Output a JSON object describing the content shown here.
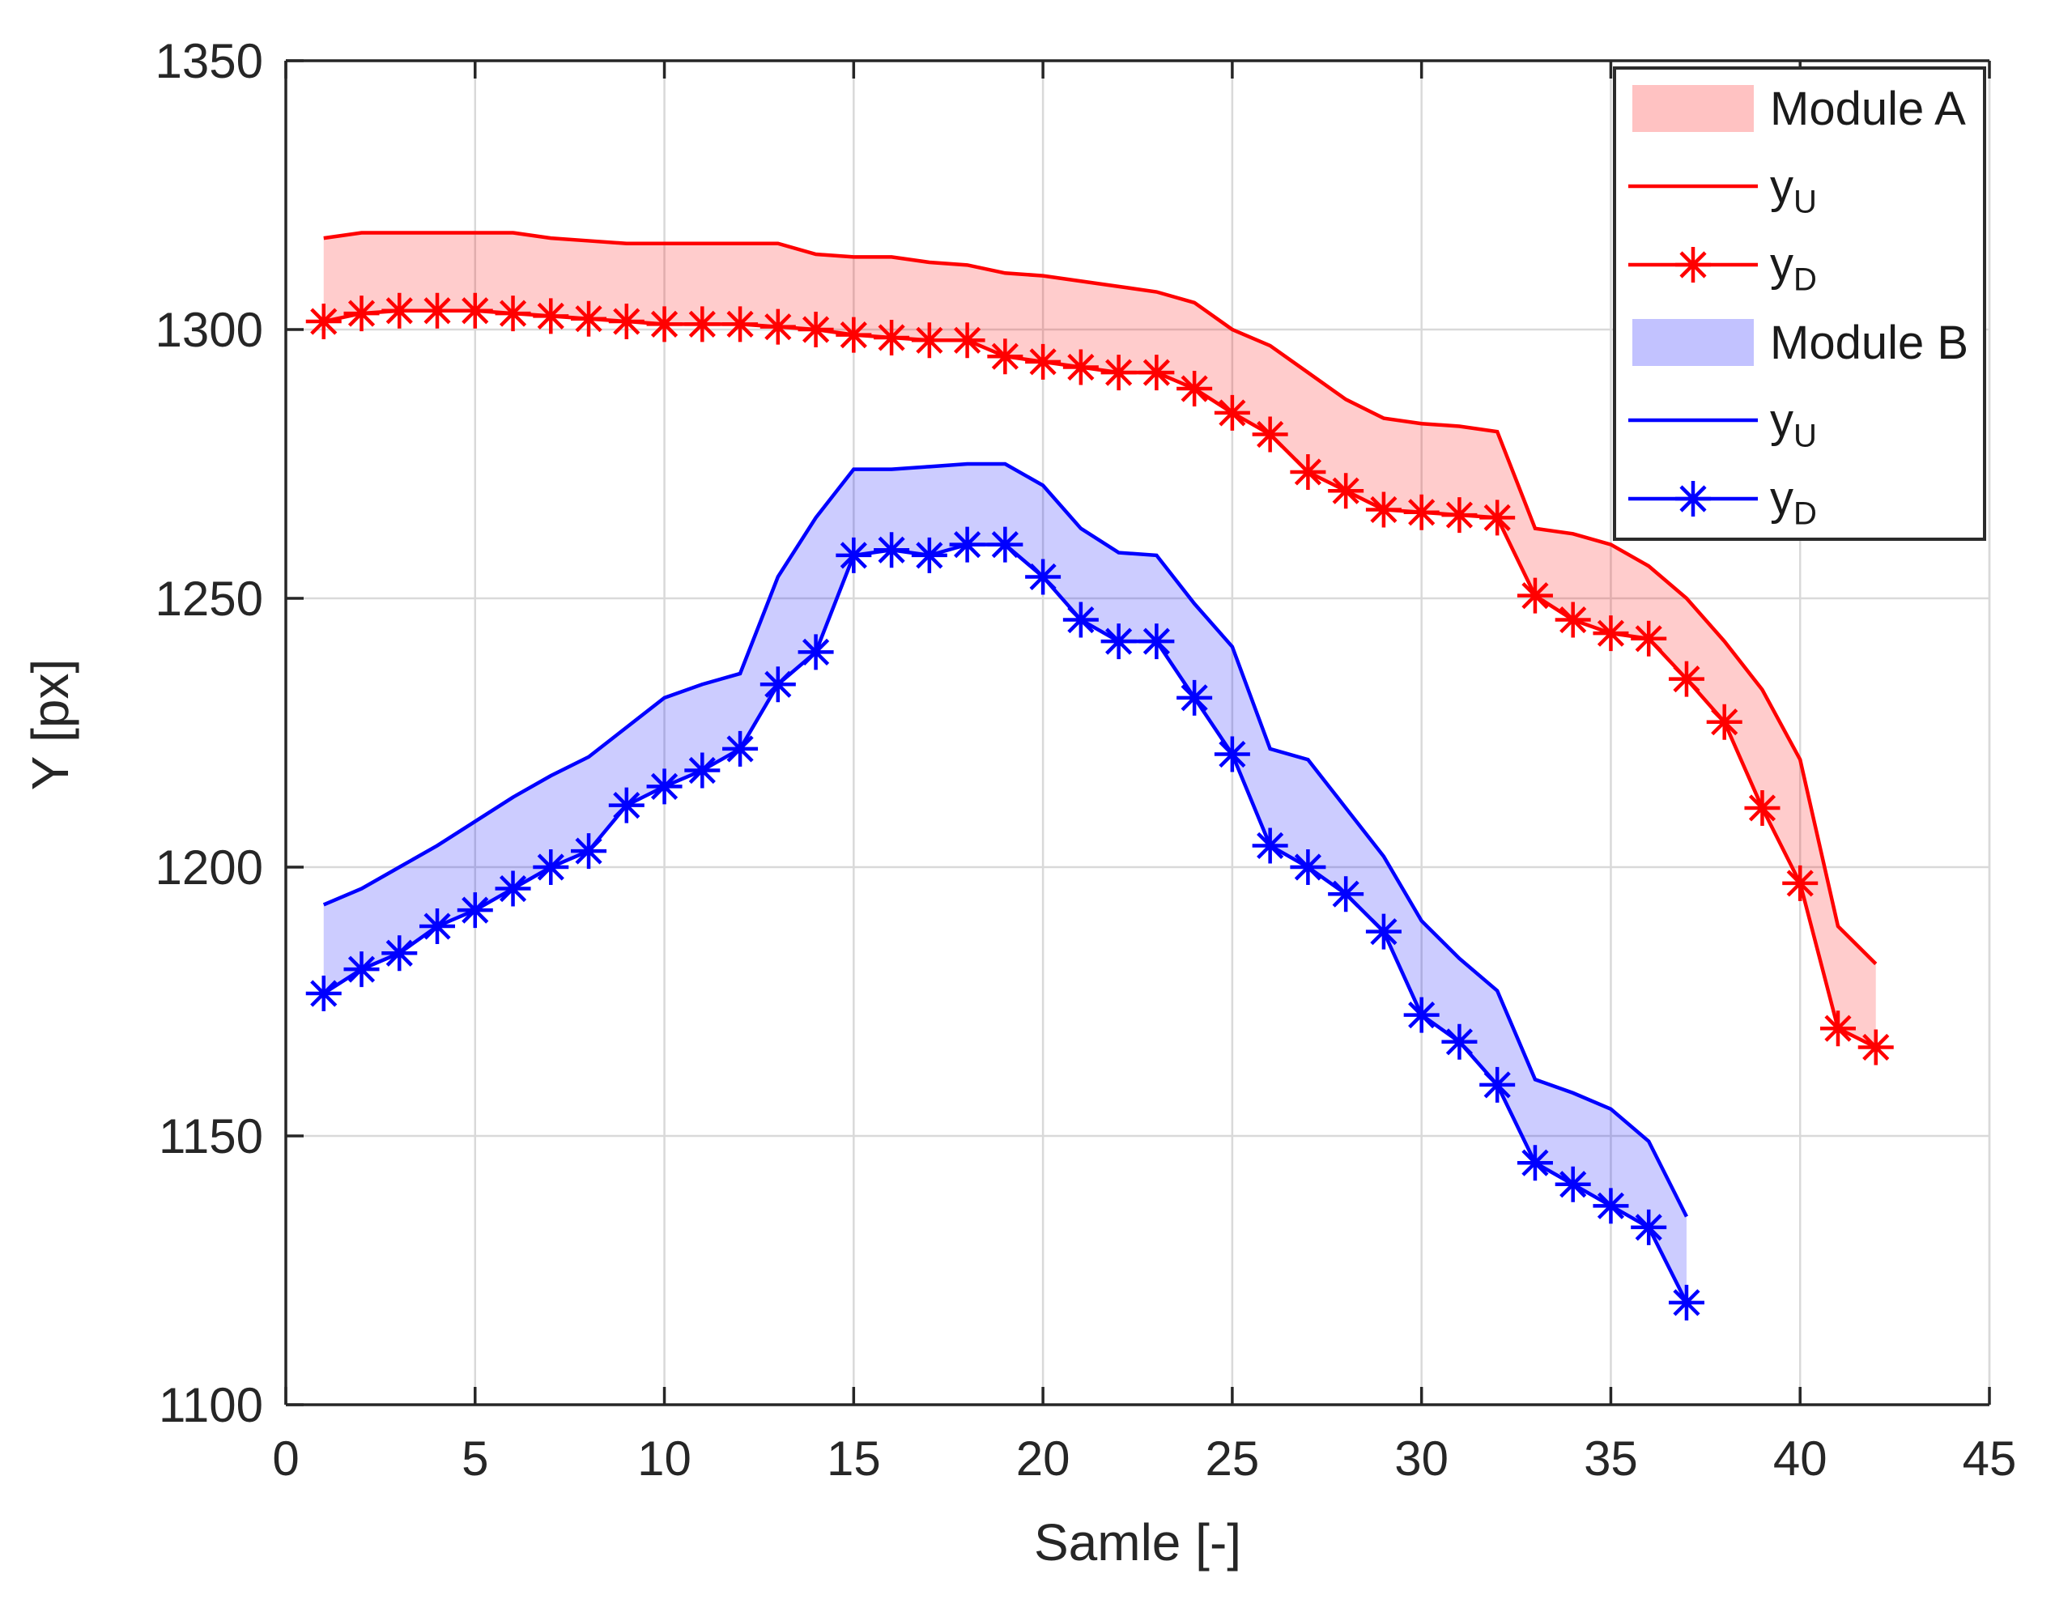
{
  "figure": {
    "background": "#ffffff"
  },
  "chart_data": {
    "type": "line",
    "title": "",
    "xlabel": "Samle [-]",
    "ylabel": "Y [px]",
    "xlim": [
      0,
      45
    ],
    "ylim": [
      1100,
      1350
    ],
    "xticks": [
      0,
      5,
      10,
      15,
      20,
      25,
      30,
      35,
      40,
      45
    ],
    "yticks": [
      1100,
      1150,
      1200,
      1250,
      1300,
      1350
    ],
    "grid": true,
    "legend_position": "top-right",
    "colors": {
      "module_a": "#ff0000",
      "module_b": "#0000ff",
      "band_fill_opacity": 0.2,
      "grid": "#d9d9d9",
      "axis": "#262626",
      "legend_border": "#2b2b2b"
    },
    "groups": [
      {
        "name": "Module A",
        "color": "#ff0000",
        "upper_series": "y_U",
        "lower_series": "y_D",
        "lower_marker": "asterisk",
        "x": [
          1,
          2,
          3,
          4,
          5,
          6,
          7,
          8,
          9,
          10,
          11,
          12,
          13,
          14,
          15,
          16,
          17,
          18,
          19,
          20,
          21,
          22,
          23,
          24,
          25,
          26,
          27,
          28,
          29,
          30,
          31,
          32,
          33,
          34,
          35,
          36,
          37,
          38,
          39,
          40,
          41,
          42
        ],
        "y_upper": [
          1317,
          1318,
          1318,
          1318,
          1318,
          1318,
          1317,
          1316.5,
          1316,
          1316,
          1316,
          1316,
          1316,
          1314,
          1313.5,
          1313.5,
          1312.5,
          1312,
          1310.5,
          1310,
          1309,
          1308,
          1307,
          1305,
          1300,
          1297,
          1292,
          1287,
          1283.5,
          1282.5,
          1282,
          1281,
          1263,
          1262,
          1260,
          1256,
          1250,
          1242,
          1233,
          1220,
          1189,
          1182
        ],
        "y_lower": [
          1301.5,
          1303,
          1303.5,
          1303.5,
          1303.5,
          1303,
          1302.5,
          1302,
          1301.5,
          1301,
          1301,
          1301,
          1300.5,
          1300,
          1299,
          1298.5,
          1298,
          1298,
          1295,
          1294,
          1293,
          1292,
          1292,
          1289,
          1284.5,
          1280.5,
          1273.5,
          1270,
          1266.5,
          1266,
          1265.5,
          1265,
          1250.5,
          1246,
          1243.5,
          1242.5,
          1235,
          1227,
          1211,
          1197,
          1170,
          1166.5
        ]
      },
      {
        "name": "Module B",
        "color": "#0000ff",
        "upper_series": "y_U",
        "lower_series": "y_D",
        "lower_marker": "asterisk",
        "x": [
          1,
          2,
          3,
          4,
          5,
          6,
          7,
          8,
          9,
          10,
          11,
          12,
          13,
          14,
          15,
          16,
          17,
          18,
          19,
          20,
          21,
          22,
          23,
          24,
          25,
          26,
          27,
          28,
          29,
          30,
          31,
          32,
          33,
          34,
          35,
          36,
          37
        ],
        "y_upper": [
          1193,
          1196,
          1200,
          1204,
          1208.5,
          1213,
          1217,
          1220.5,
          1226,
          1231.5,
          1234,
          1236,
          1254,
          1265,
          1274,
          1274,
          1274.5,
          1275,
          1275,
          1271,
          1263,
          1258.5,
          1258,
          1249,
          1241,
          1222,
          1220,
          1211,
          1202,
          1190,
          1183,
          1177,
          1160.5,
          1158,
          1155,
          1149,
          1135
        ],
        "y_lower": [
          1176.5,
          1181,
          1184,
          1189,
          1192,
          1196,
          1200,
          1203,
          1211.5,
          1215,
          1218,
          1222,
          1234,
          1240,
          1258,
          1259,
          1258,
          1260,
          1260,
          1254,
          1246,
          1242,
          1242,
          1231.5,
          1221,
          1204,
          1200,
          1195,
          1188,
          1172.5,
          1167.5,
          1159.5,
          1145,
          1141,
          1137,
          1133,
          1119
        ]
      }
    ],
    "legend": [
      {
        "icon": "patch",
        "group": 0,
        "label": "Module A",
        "sub": ""
      },
      {
        "icon": "line",
        "group": 0,
        "label": "y",
        "sub": "U"
      },
      {
        "icon": "line-asterisk",
        "group": 0,
        "label": "y",
        "sub": "D"
      },
      {
        "icon": "patch",
        "group": 1,
        "label": "Module B",
        "sub": ""
      },
      {
        "icon": "line",
        "group": 1,
        "label": "y",
        "sub": "U"
      },
      {
        "icon": "line-asterisk",
        "group": 1,
        "label": "y",
        "sub": "D"
      }
    ]
  }
}
